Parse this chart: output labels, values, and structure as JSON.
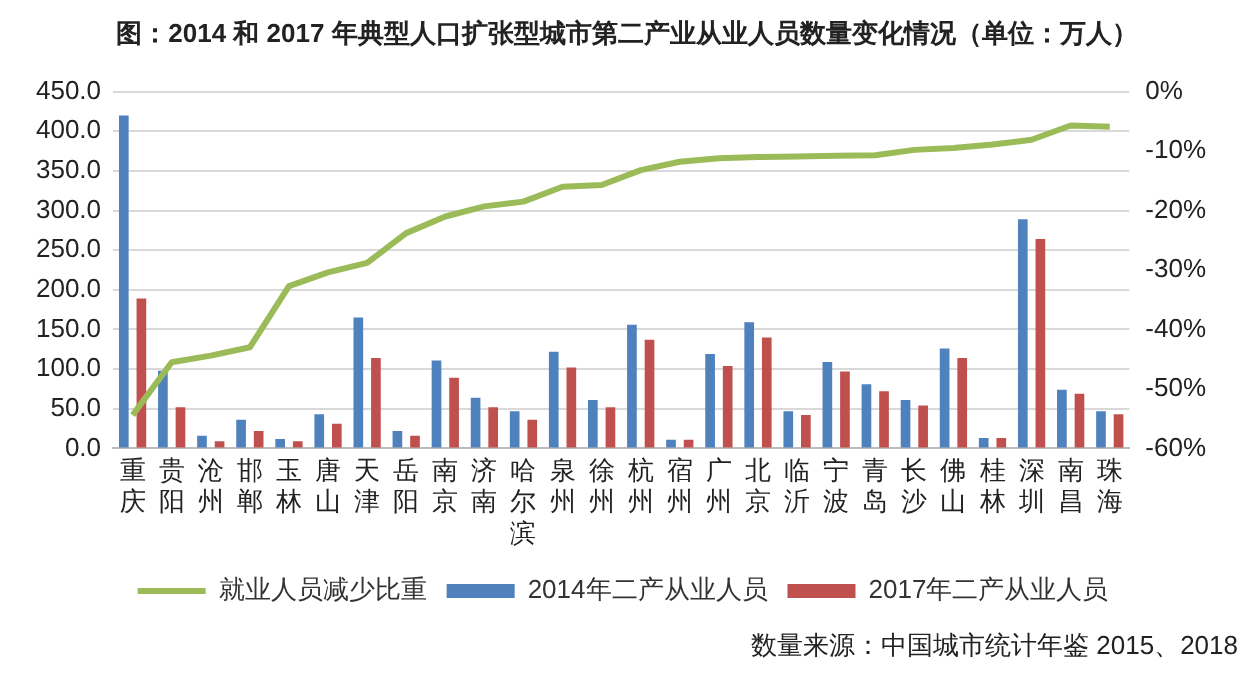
{
  "chart_data": {
    "type": "bar",
    "title": "图：2014 和 2017 年典型人口扩张型城市第二产业从业人员数量变化情况（单位：万人）",
    "categories": [
      "重庆",
      "贵阳",
      "沧州",
      "邯郸",
      "玉林",
      "唐山",
      "天津",
      "岳阳",
      "南京",
      "济南",
      "哈尔滨",
      "泉州",
      "徐州",
      "杭州",
      "宿州",
      "广州",
      "北京",
      "临沂",
      "宁波",
      "青岛",
      "长沙",
      "佛山",
      "桂林",
      "深圳",
      "南昌",
      "珠海"
    ],
    "series": [
      {
        "name": "2014年二产从业人员",
        "color": "#4f81bd",
        "values": [
          420,
          98,
          16,
          36,
          12,
          43,
          165,
          22,
          111,
          64,
          47,
          122,
          61,
          156,
          11,
          119,
          159,
          47,
          109,
          81,
          61,
          126,
          13,
          289,
          74,
          47
        ]
      },
      {
        "name": "2017年二产从业人员",
        "color": "#c0504d",
        "values": [
          189,
          52,
          9,
          22,
          9,
          31,
          114,
          16,
          89,
          52,
          36,
          102,
          52,
          137,
          11,
          104,
          140,
          42,
          97,
          72,
          54,
          114,
          13,
          264,
          69,
          43
        ]
      },
      {
        "name": "就业人员减少比重",
        "type": "line",
        "axis": "y2",
        "color": "#9bbb59",
        "marker": "none",
        "values": [
          -54.4,
          -45.5,
          -44.4,
          -43,
          -32.7,
          -30.4,
          -28.8,
          -23.8,
          -21,
          -19.3,
          -18.5,
          -16,
          -15.7,
          -13.2,
          -11.8,
          -11.2,
          -11,
          -10.9,
          -10.8,
          -10.7,
          -9.8,
          -9.5,
          -8.9,
          -8.1,
          -5.7,
          -5.9
        ]
      }
    ],
    "ylim": [
      0,
      450
    ],
    "yticks": [
      {
        "value": 0,
        "label": "0.0"
      },
      {
        "value": 50,
        "label": "50.0"
      },
      {
        "value": 100,
        "label": "100.0"
      },
      {
        "value": 150,
        "label": "150.0"
      },
      {
        "value": 200,
        "label": "200.0"
      },
      {
        "value": 250,
        "label": "250.0"
      },
      {
        "value": 300,
        "label": "300.0"
      },
      {
        "value": 350,
        "label": "350.0"
      },
      {
        "value": 400,
        "label": "400.0"
      },
      {
        "value": 450,
        "label": "450.0"
      }
    ],
    "y2lim": [
      -60,
      0
    ],
    "y2ticks": [
      {
        "value": -60,
        "label": "-60%"
      },
      {
        "value": -50,
        "label": "-50%"
      },
      {
        "value": -40,
        "label": "-40%"
      },
      {
        "value": -30,
        "label": "-30%"
      },
      {
        "value": -20,
        "label": "-20%"
      },
      {
        "value": -10,
        "label": "-10%"
      },
      {
        "value": 0,
        "label": "0%"
      }
    ],
    "grid": "y",
    "legend": "bottom",
    "annotations": [
      "数量来源：中国城市统计年鉴 2015、2018"
    ]
  }
}
